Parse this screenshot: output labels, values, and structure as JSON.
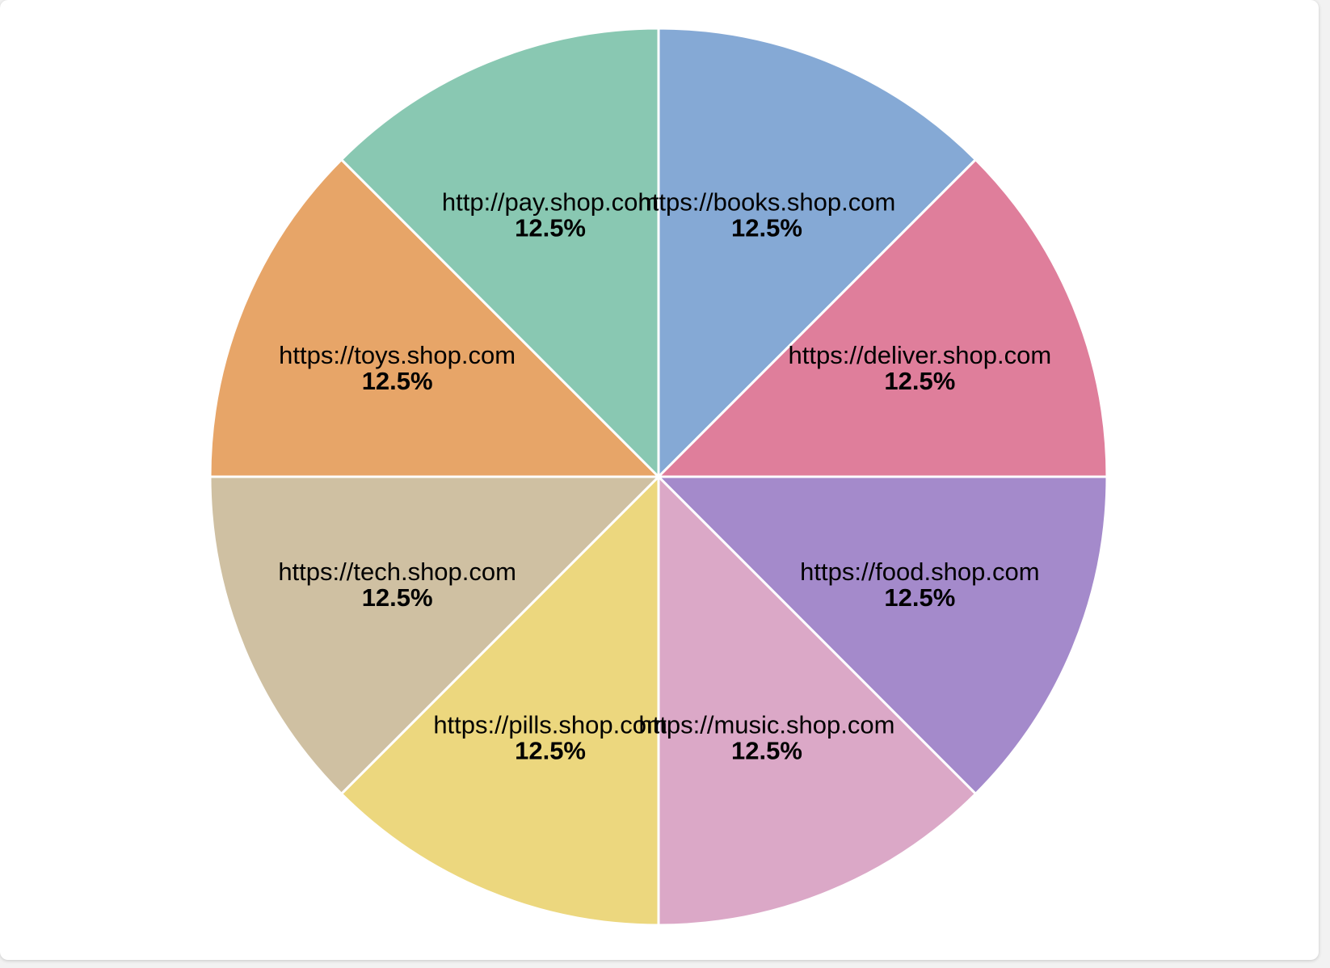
{
  "chart_data": {
    "type": "pie",
    "title": "",
    "slices": [
      {
        "label": "https://books.shop.com",
        "value": 12.5,
        "pct_label": "12.5%",
        "color": "#85a9d5"
      },
      {
        "label": "https://deliver.shop.com",
        "value": 12.5,
        "pct_label": "12.5%",
        "color": "#df7e9b"
      },
      {
        "label": "https://food.shop.com",
        "value": 12.5,
        "pct_label": "12.5%",
        "color": "#a48acb"
      },
      {
        "label": "https://music.shop.com",
        "value": 12.5,
        "pct_label": "12.5%",
        "color": "#dba8c7"
      },
      {
        "label": "https://pills.shop.com",
        "value": 12.5,
        "pct_label": "12.5%",
        "color": "#ecd77e"
      },
      {
        "label": "https://tech.shop.com",
        "value": 12.5,
        "pct_label": "12.5%",
        "color": "#cfc0a2"
      },
      {
        "label": "https://toys.shop.com",
        "value": 12.5,
        "pct_label": "12.5%",
        "color": "#e7a568"
      },
      {
        "label": "http://pay.shop.com",
        "value": 12.5,
        "pct_label": "12.5%",
        "color": "#89c8b2"
      }
    ]
  }
}
